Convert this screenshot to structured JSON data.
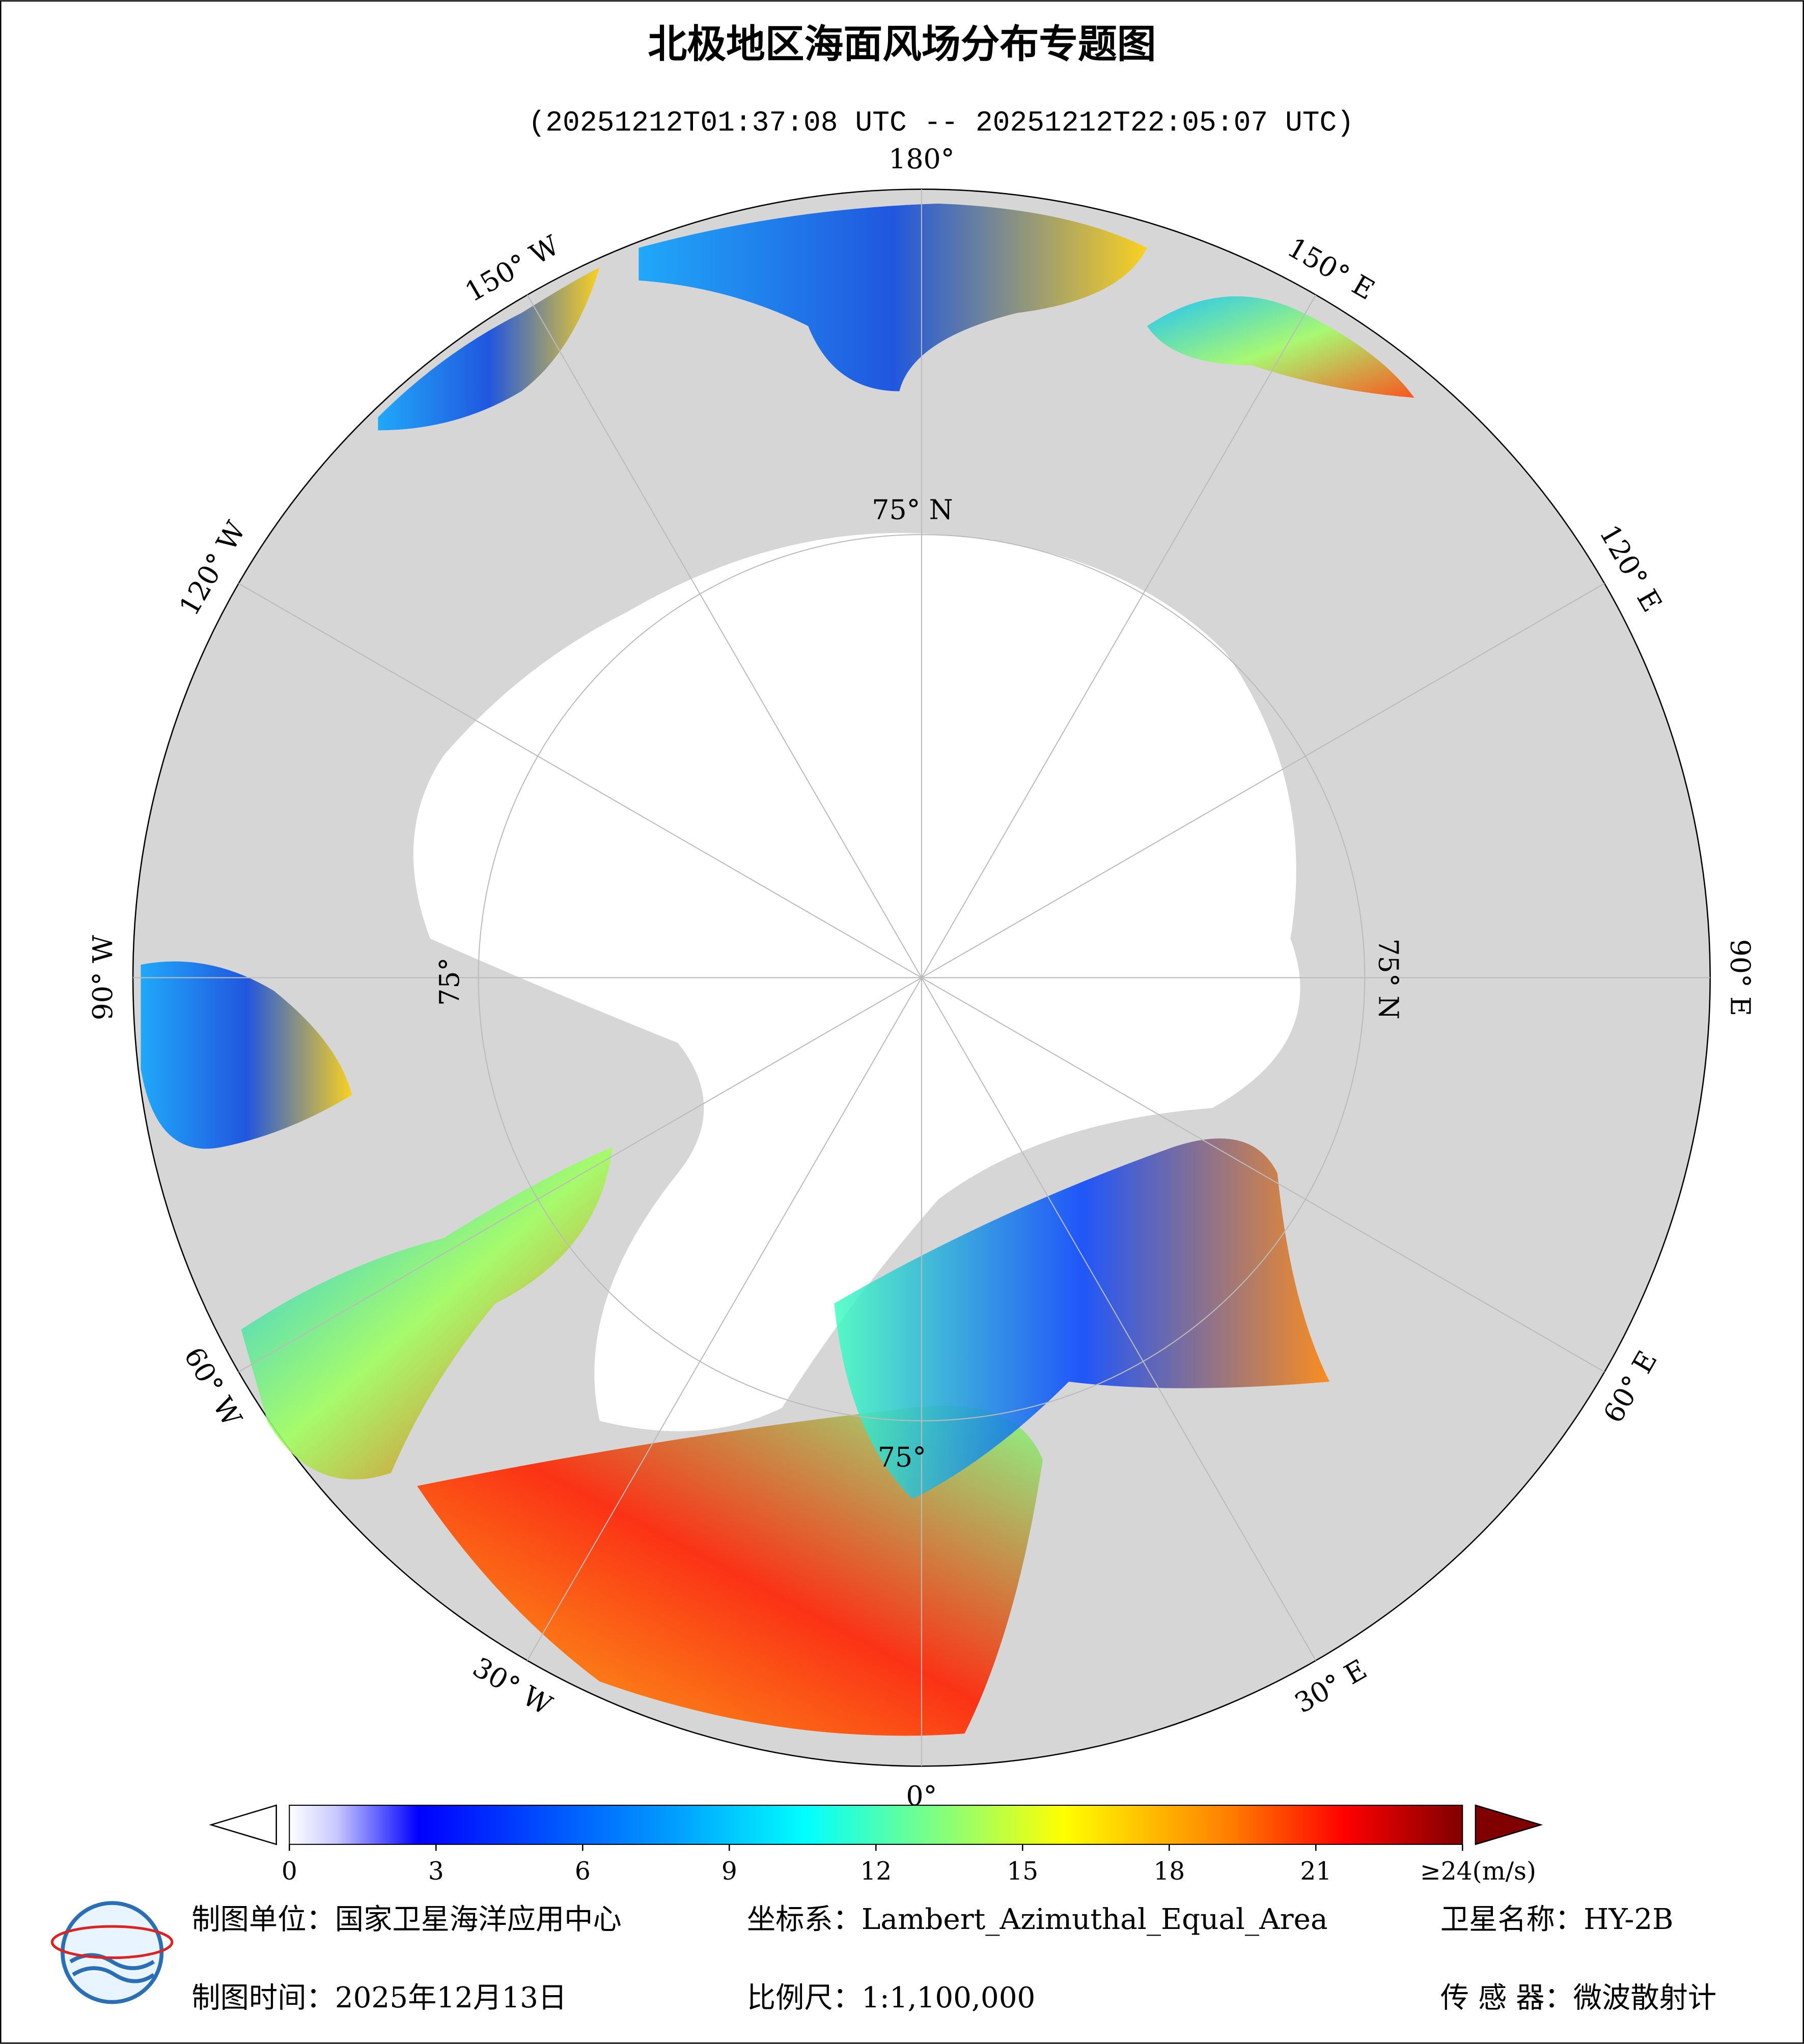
{
  "header": {
    "title": "北极地区海面风场分布专题图",
    "subtitle": "(20251212T01:37:08 UTC -- 20251212T22:05:07 UTC)"
  },
  "map": {
    "lon_labels": [
      "180°",
      "150° E",
      "120° E",
      "90° E",
      "60° E",
      "30° E",
      "0°",
      "30° W",
      "60° W",
      "90° W",
      "120° W",
      "150° W"
    ],
    "lat_labels": [
      "75° N",
      "75° N",
      "75°",
      "75°"
    ]
  },
  "colorbar": {
    "lim": [
      0,
      24
    ],
    "ticks": [
      0,
      3,
      6,
      9,
      12,
      15,
      18,
      21,
      {
        "value": 24,
        "label": "≥24(m/s)"
      }
    ]
  },
  "footer": {
    "unit": "制图单位：国家卫星海洋应用中心",
    "crs": "坐标系：Lambert_Azimuthal_Equal_Area",
    "satellite": "卫星名称：HY-2B",
    "date": "制图时间：2025年12月13日",
    "scale": "比例尺：1:1,100,000",
    "sensor": "传 感 器：微波散射计"
  }
}
